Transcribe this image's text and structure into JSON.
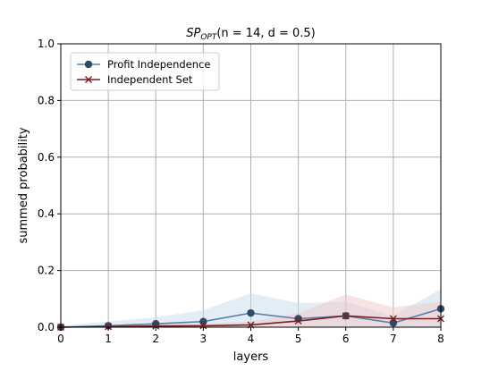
{
  "chart_data": {
    "type": "line",
    "title": {
      "main": "SP",
      "subscript": "OPT",
      "rest": "(n = 14, d = 0.5)"
    },
    "xlabel": "layers",
    "ylabel": "summed probability",
    "xlim": [
      0,
      8
    ],
    "ylim": [
      0,
      1
    ],
    "xticks": [
      "0",
      "1",
      "2",
      "3",
      "4",
      "5",
      "6",
      "7",
      "8"
    ],
    "yticks": [
      "0.0",
      "0.2",
      "0.4",
      "0.6",
      "0.8",
      "1.0"
    ],
    "grid": true,
    "legend_position": "top-left",
    "x": [
      0,
      1,
      2,
      3,
      4,
      5,
      6,
      7,
      8
    ],
    "series": [
      {
        "name": "Profit Independence",
        "marker": "circle",
        "color": "#5b7fa6",
        "marker_color": "#2e4a66",
        "band_color": "#c7dbee",
        "values": [
          0.0,
          0.005,
          0.012,
          0.02,
          0.05,
          0.03,
          0.04,
          0.015,
          0.065
        ],
        "band_upper": [
          0.005,
          0.02,
          0.035,
          0.06,
          0.12,
          0.085,
          0.09,
          0.04,
          0.135
        ],
        "band_lower": [
          0.0,
          0.0,
          0.0,
          0.0,
          0.0,
          0.0,
          0.0,
          0.0,
          0.0
        ]
      },
      {
        "name": "Independent Set",
        "marker": "x",
        "color": "#7a1f1f",
        "marker_color": "#7a1f1f",
        "band_color": "#f0c8c8",
        "values": [
          0.0,
          0.002,
          0.004,
          0.005,
          0.008,
          0.022,
          0.04,
          0.03,
          0.03
        ],
        "band_upper": [
          0.002,
          0.006,
          0.01,
          0.012,
          0.02,
          0.05,
          0.115,
          0.07,
          0.09
        ],
        "band_lower": [
          0.0,
          0.0,
          0.0,
          0.0,
          0.0,
          0.0,
          0.0,
          0.0,
          0.0
        ]
      }
    ]
  }
}
